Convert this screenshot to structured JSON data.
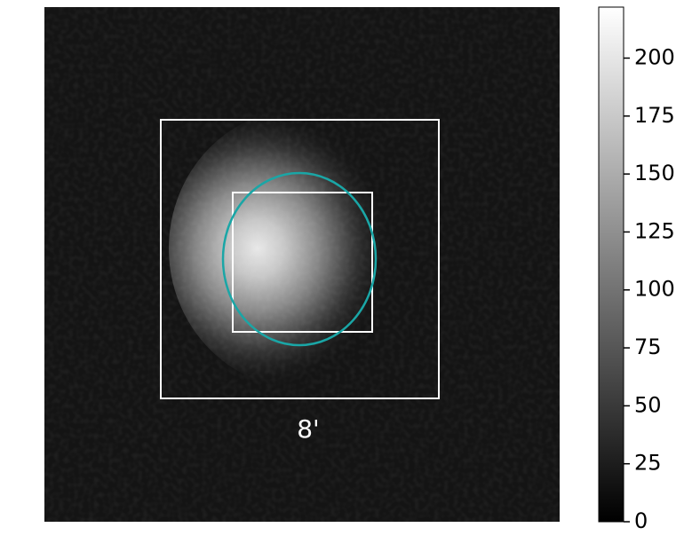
{
  "chart_data": {
    "type": "image",
    "annotation": "8'",
    "colormap": "gray",
    "clim": [
      0,
      222
    ],
    "cticks": [
      0,
      25,
      50,
      75,
      100,
      125,
      150,
      175,
      200
    ]
  }
}
